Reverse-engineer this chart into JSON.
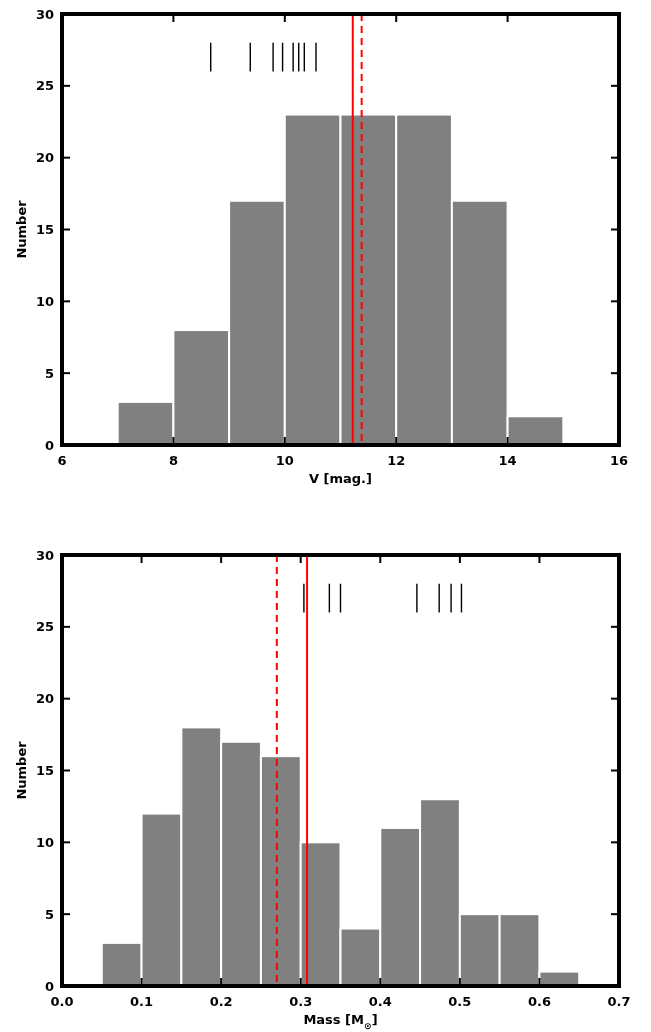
{
  "chart_data": [
    {
      "type": "histogram",
      "xlabel": "V [mag.]",
      "ylabel": "Number",
      "bins": [
        7,
        8,
        9,
        10,
        11,
        12,
        13,
        14,
        15
      ],
      "values": [
        3,
        8,
        17,
        23,
        23,
        23,
        17,
        2
      ],
      "color": "#808080",
      "xlim": [
        6,
        16
      ],
      "ylim": [
        0,
        30
      ],
      "xticks": [
        6,
        8,
        10,
        12,
        14,
        16
      ],
      "yticks": [
        0,
        5,
        10,
        15,
        20,
        25,
        30
      ],
      "grid": false,
      "series": [
        {
          "type": "bar",
          "color": "#000000",
          "x": [
            8.67,
            9.38,
            9.79,
            9.96,
            10.15,
            10.25,
            10.35,
            10.56
          ],
          "base": [
            26,
            26,
            26,
            26,
            26,
            26,
            26,
            26
          ],
          "values": [
            2,
            2,
            2,
            2,
            2,
            2,
            2,
            2
          ]
        }
      ],
      "ref_lines": [
        {
          "axis": "x",
          "value": 11.22,
          "color": "#ff0000",
          "line_style": "solid"
        },
        {
          "axis": "x",
          "value": 11.38,
          "color": "#ff0000",
          "line_style": "dashed"
        }
      ]
    },
    {
      "type": "histogram",
      "xlabel": "Mass [M$_{⊙}$]",
      "ylabel": "Number",
      "bins": [
        0.05,
        0.1,
        0.15,
        0.2,
        0.25,
        0.3,
        0.35,
        0.4,
        0.45,
        0.5,
        0.55,
        0.6,
        0.65
      ],
      "values": [
        3,
        12,
        18,
        17,
        16,
        10,
        4,
        11,
        13,
        5,
        5,
        1
      ],
      "color": "#808080",
      "xlim": [
        0,
        0.7
      ],
      "ylim": [
        0,
        30
      ],
      "xticks": [
        {
          "value": 0,
          "label": "0.0"
        },
        0.1,
        0.2,
        0.3,
        0.4,
        0.5,
        0.6,
        0.7
      ],
      "yticks": [
        0,
        5,
        10,
        15,
        20,
        25,
        30
      ],
      "grid": false,
      "series": [
        {
          "type": "bar",
          "color": "#000000",
          "x": [
            0.304,
            0.336,
            0.35,
            0.446,
            0.474,
            0.489,
            0.502
          ],
          "base": [
            26,
            26,
            26,
            26,
            26,
            26,
            26
          ],
          "values": [
            2,
            2,
            2,
            2,
            2,
            2,
            2
          ]
        }
      ],
      "ref_lines": [
        {
          "axis": "x",
          "value": 0.308,
          "color": "#ff0000",
          "line_style": "solid"
        },
        {
          "axis": "x",
          "value": 0.27,
          "color": "#ff0000",
          "line_style": "dashed"
        }
      ]
    }
  ]
}
